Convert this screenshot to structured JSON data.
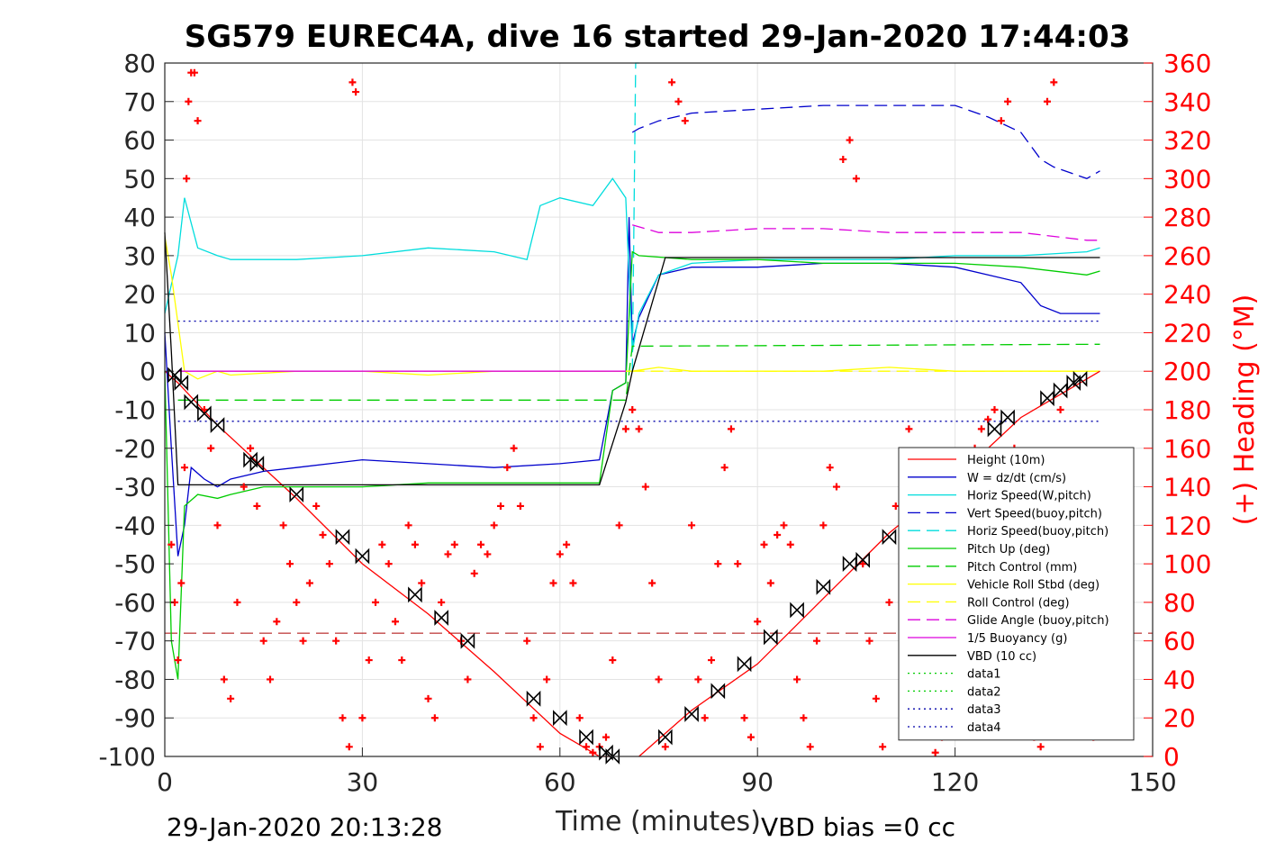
{
  "chart_data": {
    "type": "line",
    "title": "SG579 EUREC4A, dive 16 started 29-Jan-2020 17:44:03",
    "xlabel": "Time (minutes)",
    "ylabel_left": "",
    "ylabel_right": "(+) Heading (°M)",
    "xlim": [
      0,
      150
    ],
    "ylim_left": [
      -100,
      80
    ],
    "ylim_right": [
      0,
      360
    ],
    "xticks": [
      "0",
      "30",
      "60",
      "90",
      "120",
      "150"
    ],
    "yticks_left": [
      "80",
      "70",
      "60",
      "50",
      "40",
      "30",
      "20",
      "10",
      "0",
      "-10",
      "-20",
      "-30",
      "-40",
      "-50",
      "-60",
      "-70",
      "-80",
      "-90",
      "-100"
    ],
    "yticks_right": [
      "360",
      "340",
      "320",
      "300",
      "280",
      "260",
      "240",
      "220",
      "200",
      "180",
      "160",
      "140",
      "120",
      "100",
      "80",
      "60",
      "40",
      "20",
      "0"
    ],
    "grid": true,
    "legend_position": "lower-right",
    "footer_left": "29-Jan-2020 20:13:28",
    "footer_right": "VBD bias =0 cc",
    "series": [
      {
        "name": "Height (10m)",
        "color": "#ff0000",
        "style": "solid",
        "x": [
          0,
          2,
          8,
          20,
          30,
          40,
          50,
          60,
          66,
          68
        ],
        "y": [
          0,
          -3,
          -14,
          -33,
          -50,
          -63,
          -78,
          -94,
          -100,
          -100
        ]
      },
      {
        "name": "W = dz/dt (cm/s)",
        "color": "#0000cc",
        "style": "solid",
        "x": [
          0,
          1,
          2,
          3,
          4,
          6,
          8,
          10,
          15,
          20,
          30,
          40,
          50,
          60,
          66,
          68,
          70,
          70.5,
          71,
          72,
          75,
          80,
          90,
          100,
          110,
          120,
          125,
          130,
          133,
          136,
          140,
          142
        ],
        "y": [
          10,
          -20,
          -48,
          -40,
          -25,
          -28,
          -30,
          -28,
          -26,
          -25,
          -23,
          -24,
          -25,
          -24,
          -23,
          -5,
          -3,
          40,
          7,
          14,
          25,
          27,
          27,
          28,
          28,
          27,
          25,
          23,
          17,
          15,
          15,
          15
        ]
      },
      {
        "name": "Horiz Speed(W,pitch)",
        "color": "#00dddd",
        "style": "solid",
        "x": [
          0,
          2,
          3,
          5,
          8,
          10,
          15,
          20,
          30,
          40,
          50,
          55,
          57,
          60,
          65,
          68,
          70,
          71,
          72,
          75,
          80,
          90,
          100,
          110,
          120,
          130,
          140,
          142
        ],
        "y": [
          15,
          30,
          45,
          32,
          30,
          29,
          29,
          29,
          30,
          32,
          31,
          29,
          43,
          45,
          43,
          50,
          45,
          5,
          15,
          25,
          28,
          29,
          29,
          29,
          30,
          30,
          31,
          32
        ]
      },
      {
        "name": "Vert Speed(buoy,pitch)",
        "color": "#0000cc",
        "style": "dashed",
        "x": [
          71,
          72,
          75,
          80,
          90,
          100,
          110,
          120,
          125,
          130,
          133,
          135,
          140,
          142
        ],
        "y": [
          62,
          63,
          65,
          67,
          68,
          69,
          69,
          69,
          66,
          62,
          55,
          53,
          50,
          52
        ]
      },
      {
        "name": "Horiz Speed(buoy,pitch)",
        "color": "#00dddd",
        "style": "dashed",
        "x": [
          71,
          71.5,
          72
        ],
        "y": [
          0,
          80,
          80
        ]
      },
      {
        "name": "Pitch Up (deg)",
        "color": "#00cc00",
        "style": "solid",
        "x": [
          0,
          1,
          2,
          3,
          5,
          8,
          10,
          15,
          20,
          30,
          40,
          50,
          60,
          66,
          68,
          70,
          71,
          72,
          80,
          90,
          100,
          110,
          120,
          130,
          140,
          142
        ],
        "y": [
          0,
          -70,
          -80,
          -35,
          -32,
          -33,
          -32,
          -30,
          -30,
          -30,
          -29,
          -29,
          -29,
          -29,
          -5,
          -3,
          31,
          30,
          29,
          29,
          28,
          28,
          28,
          27,
          25,
          26
        ]
      },
      {
        "name": "Pitch Control (mm)",
        "color": "#00cc00",
        "style": "dashed",
        "x": [
          2,
          70,
          71,
          142
        ],
        "y": [
          -7.5,
          -7.5,
          6.5,
          7
        ]
      },
      {
        "name": "Vehicle Roll Stbd (deg)",
        "color": "#ffff00",
        "style": "solid",
        "x": [
          0,
          1,
          3,
          5,
          8,
          10,
          20,
          30,
          40,
          50,
          60,
          65,
          70,
          71,
          75,
          80,
          90,
          100,
          110,
          120,
          130,
          140,
          142
        ],
        "y": [
          35,
          25,
          0,
          -2,
          0,
          -1,
          0,
          0,
          -1,
          0,
          0,
          0,
          0,
          0,
          1,
          0,
          0,
          0,
          1,
          0,
          0,
          0,
          0
        ]
      },
      {
        "name": "Roll Control (deg)",
        "color": "#ffff00",
        "style": "dashed",
        "x": [
          2,
          142
        ],
        "y": [
          0,
          0
        ]
      },
      {
        "name": "Glide Angle (buoy,pitch)",
        "color": "#dd00dd",
        "style": "dashed",
        "x": [
          71,
          75,
          80,
          90,
          100,
          110,
          120,
          130,
          140,
          142
        ],
        "y": [
          38,
          36,
          36,
          37,
          37,
          36,
          36,
          36,
          34,
          34
        ]
      },
      {
        "name": "1/5 Buoyancy (g)",
        "color": "#dd00dd",
        "style": "solid",
        "x": [
          2,
          70
        ],
        "y": [
          0,
          0
        ]
      },
      {
        "name": "VBD (10 cc)",
        "color": "#000000",
        "style": "solid",
        "x": [
          0,
          1,
          2,
          66,
          70,
          71,
          76,
          142
        ],
        "y": [
          36,
          5,
          -29.5,
          -29.5,
          -8,
          0,
          29.5,
          29.5
        ]
      },
      {
        "name": "data1",
        "color": "#00cc00",
        "style": "dotted",
        "x": [],
        "y": []
      },
      {
        "name": "data2",
        "color": "#00cc00",
        "style": "dotted",
        "x": [],
        "y": []
      },
      {
        "name": "data3",
        "color": "#0000aa",
        "style": "dotted",
        "x": [
          2,
          142
        ],
        "y": [
          13,
          13
        ]
      },
      {
        "name": "data4",
        "color": "#0000aa",
        "style": "dotted",
        "x": [
          2,
          142
        ],
        "y": [
          -13,
          -13
        ]
      }
    ],
    "climb_height": {
      "color": "#ff0000",
      "x": [
        72,
        80,
        90,
        100,
        110,
        120,
        130,
        140,
        142
      ],
      "y": [
        -100,
        -88,
        -76,
        -59,
        -42,
        -28,
        -12,
        -2,
        0
      ]
    },
    "reference_line": {
      "color": "#aa0000",
      "style": "dashed",
      "y": -68
    },
    "heading_points": {
      "axis": "right",
      "color": "#ff0000",
      "marker": "+",
      "x": [
        1,
        1.5,
        2,
        2.5,
        3,
        3.3,
        3.6,
        4,
        4.5,
        5,
        6,
        7,
        8,
        9,
        10,
        11,
        12,
        13,
        14,
        15,
        16,
        17,
        18,
        19,
        20,
        21,
        22,
        23,
        24,
        25,
        26,
        27,
        28,
        28.5,
        29,
        30,
        31,
        32,
        33,
        34,
        35,
        36,
        37,
        38,
        39,
        40,
        41,
        42,
        43,
        44,
        45,
        46,
        47,
        48,
        49,
        50,
        51,
        52,
        53,
        54,
        55,
        56,
        57,
        58,
        59,
        60,
        61,
        62,
        63,
        64,
        65,
        66,
        67,
        68,
        69,
        70,
        71,
        72,
        73,
        74,
        75,
        76,
        77,
        78,
        79,
        80,
        81,
        82,
        83,
        84,
        85,
        86,
        87,
        88,
        89,
        90,
        91,
        92,
        93,
        94,
        95,
        96,
        97,
        98,
        99,
        100,
        101,
        102,
        103,
        104,
        105,
        106,
        107,
        108,
        109,
        110,
        111,
        112,
        113,
        114,
        115,
        116,
        117,
        118,
        119,
        120,
        121,
        122,
        123,
        124,
        125,
        126,
        127,
        128,
        129,
        130,
        131,
        132,
        133,
        134,
        135,
        136,
        137,
        138,
        139,
        140,
        141
      ],
      "y": [
        110,
        80,
        50,
        90,
        150,
        300,
        340,
        355,
        355,
        330,
        180,
        160,
        120,
        40,
        30,
        80,
        140,
        160,
        130,
        60,
        40,
        70,
        120,
        100,
        80,
        60,
        90,
        130,
        115,
        100,
        60,
        20,
        5,
        350,
        345,
        20,
        50,
        80,
        110,
        100,
        70,
        50,
        120,
        110,
        90,
        30,
        20,
        80,
        105,
        110,
        60,
        40,
        95,
        110,
        105,
        120,
        130,
        150,
        160,
        130,
        60,
        20,
        5,
        40,
        90,
        105,
        110,
        90,
        20,
        5,
        2,
        5,
        10,
        50,
        120,
        170,
        180,
        170,
        140,
        90,
        40,
        5,
        350,
        340,
        330,
        120,
        40,
        20,
        50,
        100,
        150,
        170,
        100,
        20,
        10,
        70,
        110,
        90,
        115,
        120,
        110,
        40,
        20,
        5,
        60,
        120,
        150,
        140,
        310,
        320,
        300,
        100,
        60,
        30,
        5,
        80,
        130,
        150,
        170,
        140,
        60,
        20,
        2,
        10,
        50,
        90,
        120,
        140,
        160,
        170,
        175,
        180,
        330,
        340,
        160,
        120,
        60,
        10,
        5,
        340,
        350,
        180,
        150,
        100,
        60,
        30,
        10
      ]
    },
    "annotations": [
      {
        "label": "depth-marker",
        "marker": "hourglass",
        "x": [
          1.5,
          2.5,
          4,
          6,
          8,
          13,
          14,
          20,
          27,
          30,
          38,
          42,
          46,
          56,
          60,
          64,
          67,
          68,
          76,
          80,
          84,
          88,
          92,
          96,
          100,
          104,
          106,
          110,
          126,
          128,
          134,
          136,
          138,
          139
        ],
        "y": [
          -1,
          -3,
          -8,
          -11,
          -14,
          -23,
          -24,
          -32,
          -43,
          -48,
          -58,
          -64,
          -70,
          -85,
          -90,
          -95,
          -99,
          -100,
          -95,
          -89,
          -83,
          -76,
          -69,
          -62,
          -56,
          -50,
          -49,
          -43,
          -15,
          -12,
          -7,
          -5,
          -3,
          -2
        ]
      }
    ]
  }
}
